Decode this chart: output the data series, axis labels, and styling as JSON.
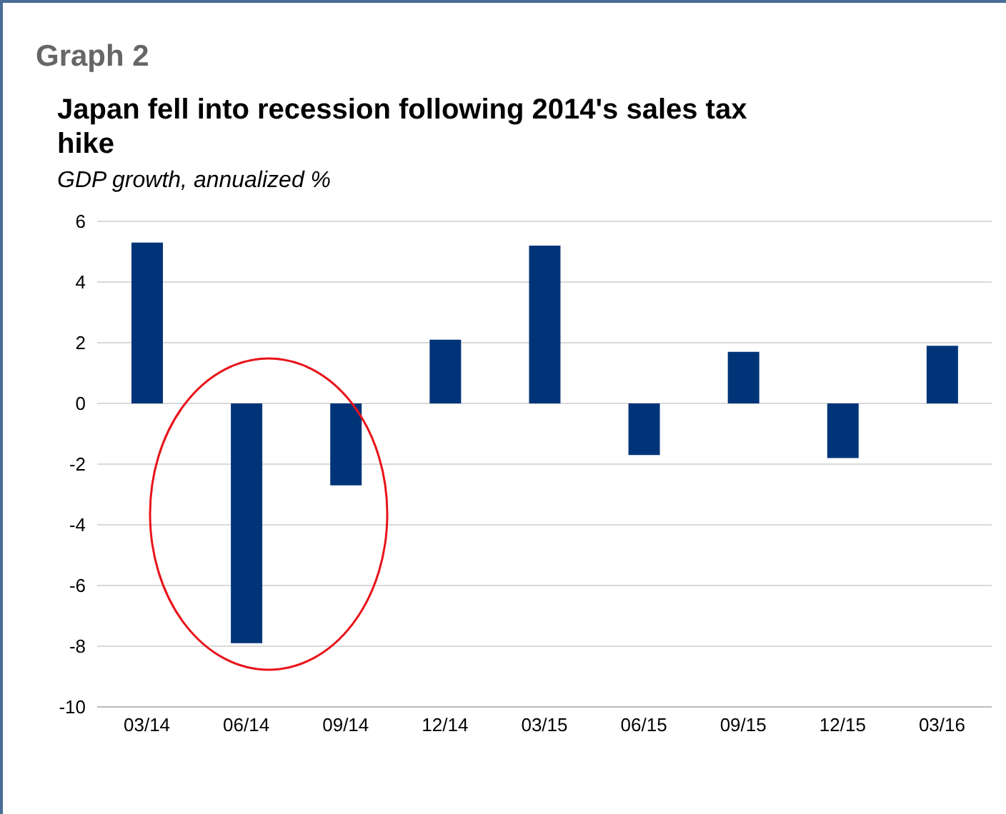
{
  "chart_data": {
    "type": "bar",
    "title": "Japan fell into recession following 2014's sales tax hike",
    "subtitle": "GDP growth, annualized %",
    "annotations": [
      "Graph 2"
    ],
    "categories": [
      "03/14",
      "06/14",
      "09/14",
      "12/14",
      "03/15",
      "06/15",
      "09/15",
      "12/15",
      "03/16"
    ],
    "values": [
      5.3,
      -7.9,
      -2.7,
      2.1,
      5.2,
      -1.7,
      1.7,
      -1.8,
      1.9
    ],
    "color": "#003478",
    "ylim": [
      -10,
      6
    ],
    "yticks": [
      -10,
      -8,
      -6,
      -4,
      -2,
      0,
      2,
      4,
      6
    ],
    "grid": "y"
  }
}
